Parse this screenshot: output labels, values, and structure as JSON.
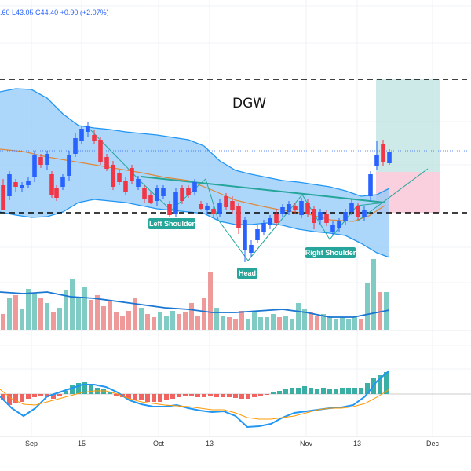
{
  "chart_data": {
    "type": "candlestick",
    "title": "DGW",
    "ohlc_readout": "L43.05  C44.40  +0.90 (+2.07%)",
    "ohlc_prefix": ".60",
    "x_ticks": [
      "Sep",
      "15",
      "Oct",
      "13",
      "Nov",
      "13",
      "Dec"
    ],
    "pattern": {
      "name": "Head and Shoulders (inverse)",
      "labels": [
        "Left Shoulder",
        "Head",
        "Right Shoulder"
      ]
    },
    "colors": {
      "up": "#2962ff",
      "down": "#f23645",
      "bollinger_fill": "#90caf9",
      "bollinger_line": "#2196f3",
      "ma_line": "#e0883a",
      "neckline": "#26a69a",
      "label_bg": "#26a69a",
      "profit_zone": "#b2dfdb",
      "loss_zone": "#f8bbd0",
      "vol_up": "#80cbc4",
      "vol_down": "#ef9a9a",
      "macd_line": "#2196f3",
      "signal_line": "#ff9800",
      "hist_up": "#26a69a",
      "hist_down": "#ef5350"
    },
    "candles": [
      [
        1,
        0
      ],
      [
        2,
        0
      ],
      [
        3,
        1
      ],
      [
        4,
        0
      ],
      [
        5,
        1
      ],
      [
        6,
        1
      ],
      [
        7,
        0
      ],
      [
        8,
        1
      ],
      [
        9,
        1
      ],
      [
        10,
        0
      ],
      [
        11,
        1
      ],
      [
        12,
        0
      ],
      [
        13,
        1
      ],
      [
        14,
        1
      ],
      [
        15,
        1
      ],
      [
        16,
        0
      ],
      [
        17,
        0
      ],
      [
        18,
        0
      ],
      [
        19,
        0
      ],
      [
        20,
        0
      ],
      [
        21,
        0
      ],
      [
        22,
        0
      ],
      [
        23,
        1
      ],
      [
        24,
        0
      ],
      [
        25,
        0
      ],
      [
        26,
        1
      ],
      [
        27,
        1
      ],
      [
        28,
        0
      ],
      [
        29,
        0
      ],
      [
        30,
        1
      ],
      [
        31,
        0
      ],
      [
        32,
        0
      ],
      [
        33,
        0
      ],
      [
        34,
        1
      ],
      [
        35,
        0
      ],
      [
        36,
        1
      ],
      [
        37,
        0
      ],
      [
        38,
        0
      ],
      [
        39,
        0
      ],
      [
        40,
        1
      ],
      [
        41,
        1
      ],
      [
        42,
        1
      ],
      [
        43,
        1
      ],
      [
        44,
        0
      ],
      [
        45,
        1
      ],
      [
        46,
        1
      ],
      [
        47,
        0
      ],
      [
        48,
        1
      ],
      [
        49,
        0
      ],
      [
        50,
        0
      ],
      [
        51,
        1
      ],
      [
        52,
        1
      ],
      [
        53,
        1
      ],
      [
        54,
        0
      ],
      [
        55,
        1
      ],
      [
        56,
        1
      ],
      [
        57,
        0
      ],
      [
        58,
        1
      ]
    ]
  }
}
